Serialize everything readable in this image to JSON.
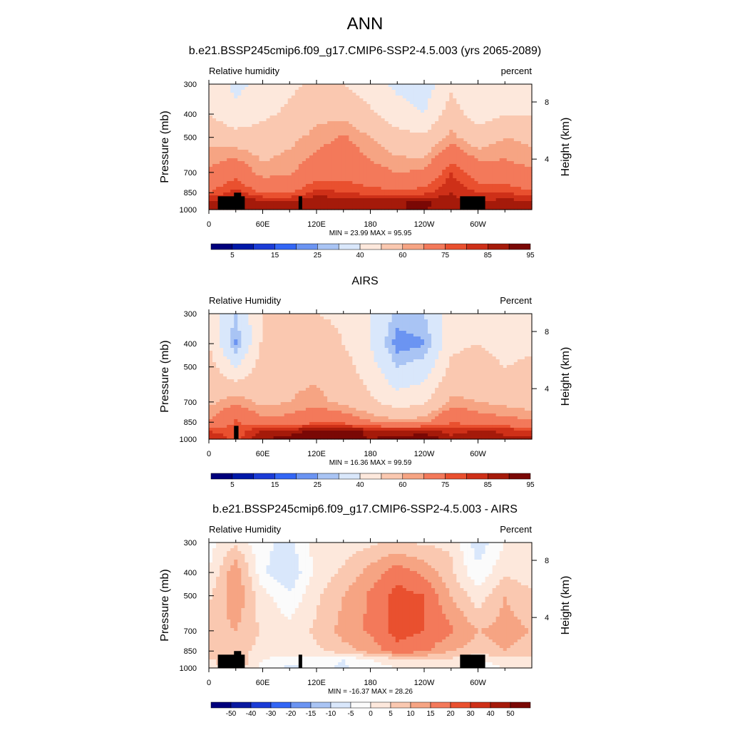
{
  "figure_title": "ANN",
  "panels": [
    {
      "title": "b.e21.BSSP245cmip6.f09_g17.CMIP6-SSP2-4.5.003 (yrs 2065-2089)",
      "left_label": "Relative humidity",
      "right_label": "percent",
      "stats": "MIN =  23.99  MAX =  95.95",
      "colorbar_labels": [
        "5",
        "15",
        "25",
        "40",
        "60",
        "75",
        "85",
        "95"
      ]
    },
    {
      "title": "AIRS",
      "left_label": "Relative Humidity",
      "right_label": "Percent",
      "stats": "MIN =  16.36  MAX =  99.59",
      "colorbar_labels": [
        "5",
        "15",
        "25",
        "40",
        "60",
        "75",
        "85",
        "95"
      ]
    },
    {
      "title": "b.e21.BSSP245cmip6.f09_g17.CMIP6-SSP2-4.5.003 - AIRS",
      "left_label": "Relative Humidity",
      "right_label": "Percent",
      "stats": "MIN = -16.37  MAX =  28.26",
      "colorbar_labels": [
        "-50",
        "-40",
        "-30",
        "-20",
        "-15",
        "-10",
        "-5",
        "0",
        "5",
        "10",
        "15",
        "20",
        "30",
        "40",
        "50"
      ]
    }
  ],
  "axes": {
    "ylabel": "Pressure (mb)",
    "ylabel_right": "Height (km)",
    "pressure_ticks": [
      "300",
      "400",
      "500",
      "700",
      "850",
      "1000"
    ],
    "height_ticks": [
      "8",
      "4"
    ],
    "lon_ticks": [
      "0",
      "60E",
      "120E",
      "180",
      "120W",
      "60W"
    ]
  },
  "colors": {
    "abs_scale": [
      "#00007c",
      "#0019a8",
      "#1b3cd6",
      "#3366f5",
      "#6b94f2",
      "#a9c4f4",
      "#d9e7fb",
      "#fde8dc",
      "#fac8b0",
      "#f6a483",
      "#f3795a",
      "#e9502f",
      "#ce3018",
      "#a51a0a",
      "#7a0805"
    ],
    "diff_scale": [
      "#00007c",
      "#0a1aa0",
      "#1b3cd6",
      "#3366f5",
      "#6b94f2",
      "#a9c4f4",
      "#d9e7fb",
      "#fbfbfb",
      "#fde8dc",
      "#fac8b0",
      "#f6a483",
      "#f3795a",
      "#e9502f",
      "#ce3018",
      "#a51a0a",
      "#7a0805"
    ],
    "topography": "#000000"
  },
  "chart_data": [
    {
      "type": "heatmap",
      "title": "b.e21.BSSP245cmip6.f09_g17.CMIP6-SSP2-4.5.003 (yrs 2065-2089)",
      "xlabel": "",
      "ylabel": "Pressure (mb)",
      "xlim": [
        0,
        360
      ],
      "ylim": [
        1000,
        300
      ],
      "units": "percent",
      "min": 23.99,
      "max": 95.95,
      "levels": [
        5,
        10,
        15,
        20,
        25,
        30,
        40,
        50,
        60,
        65,
        75,
        80,
        85,
        90,
        95
      ],
      "x": [
        0,
        30,
        60,
        90,
        120,
        150,
        180,
        210,
        240,
        270,
        300,
        330,
        360
      ],
      "y": [
        300,
        400,
        500,
        700,
        850,
        925,
        1000
      ],
      "z": [
        [
          45,
          38,
          42,
          48,
          52,
          50,
          44,
          38,
          34,
          48,
          40,
          44,
          46
        ],
        [
          50,
          42,
          48,
          52,
          58,
          58,
          52,
          44,
          40,
          55,
          45,
          50,
          50
        ],
        [
          58,
          55,
          55,
          58,
          62,
          66,
          60,
          54,
          52,
          62,
          55,
          60,
          58
        ],
        [
          66,
          72,
          62,
          64,
          70,
          72,
          68,
          65,
          66,
          80,
          70,
          68,
          66
        ],
        [
          75,
          82,
          74,
          74,
          82,
          80,
          78,
          76,
          78,
          85,
          80,
          80,
          76
        ],
        [
          86,
          88,
          87,
          85,
          90,
          88,
          88,
          89,
          92,
          86,
          85,
          87,
          86
        ],
        [
          88,
          86,
          87,
          86,
          88,
          87,
          88,
          90,
          90,
          88,
          86,
          87,
          88
        ]
      ]
    },
    {
      "type": "heatmap",
      "title": "AIRS",
      "xlabel": "",
      "ylabel": "Pressure (mb)",
      "xlim": [
        0,
        360
      ],
      "ylim": [
        1000,
        300
      ],
      "units": "Percent",
      "min": 16.36,
      "max": 99.59,
      "levels": [
        5,
        10,
        15,
        20,
        25,
        30,
        40,
        50,
        60,
        65,
        75,
        80,
        85,
        90,
        95
      ],
      "x": [
        0,
        30,
        60,
        90,
        120,
        150,
        180,
        210,
        240,
        270,
        300,
        330,
        360
      ],
      "y": [
        300,
        400,
        500,
        700,
        850,
        925,
        1000
      ],
      "z": [
        [
          48,
          30,
          50,
          52,
          50,
          48,
          40,
          28,
          30,
          44,
          48,
          44,
          46
        ],
        [
          50,
          24,
          52,
          56,
          56,
          50,
          40,
          22,
          24,
          48,
          50,
          46,
          48
        ],
        [
          54,
          40,
          55,
          58,
          58,
          55,
          44,
          30,
          34,
          52,
          54,
          50,
          52
        ],
        [
          58,
          64,
          58,
          60,
          62,
          58,
          52,
          45,
          48,
          62,
          60,
          58,
          56
        ],
        [
          66,
          76,
          68,
          68,
          74,
          72,
          66,
          62,
          64,
          75,
          70,
          68,
          66
        ],
        [
          80,
          76,
          86,
          88,
          92,
          94,
          88,
          86,
          88,
          82,
          86,
          84,
          82
        ],
        [
          86,
          78,
          90,
          92,
          94,
          92,
          90,
          92,
          94,
          88,
          88,
          86,
          86
        ]
      ]
    },
    {
      "type": "heatmap",
      "title": "b.e21.BSSP245cmip6.f09_g17.CMIP6-SSP2-4.5.003 - AIRS",
      "xlabel": "",
      "ylabel": "Pressure (mb)",
      "xlim": [
        0,
        360
      ],
      "ylim": [
        1000,
        300
      ],
      "units": "Percent",
      "min": -16.37,
      "max": 28.26,
      "levels": [
        -50,
        -40,
        -30,
        -20,
        -15,
        -10,
        -5,
        0,
        5,
        10,
        15,
        20,
        30,
        40,
        50
      ],
      "x": [
        0,
        30,
        60,
        90,
        120,
        150,
        180,
        210,
        240,
        270,
        300,
        330,
        360
      ],
      "y": [
        300,
        400,
        500,
        700,
        850,
        925,
        1000
      ],
      "z": [
        [
          -2,
          4,
          -4,
          -6,
          2,
          2,
          4,
          6,
          4,
          4,
          -8,
          0,
          0
        ],
        [
          0,
          14,
          -4,
          -10,
          2,
          6,
          12,
          18,
          14,
          6,
          -4,
          4,
          2
        ],
        [
          4,
          14,
          2,
          -4,
          4,
          10,
          16,
          22,
          20,
          10,
          2,
          10,
          6
        ],
        [
          8,
          10,
          4,
          2,
          6,
          12,
          16,
          22,
          20,
          16,
          10,
          12,
          10
        ],
        [
          8,
          6,
          4,
          4,
          4,
          8,
          12,
          18,
          16,
          10,
          8,
          10,
          8
        ],
        [
          4,
          10,
          0,
          -4,
          -2,
          -5,
          0,
          3,
          4,
          4,
          0,
          2,
          4
        ],
        [
          2,
          8,
          -2,
          -6,
          -4,
          -6,
          -2,
          0,
          2,
          2,
          -2,
          0,
          2
        ]
      ]
    }
  ]
}
